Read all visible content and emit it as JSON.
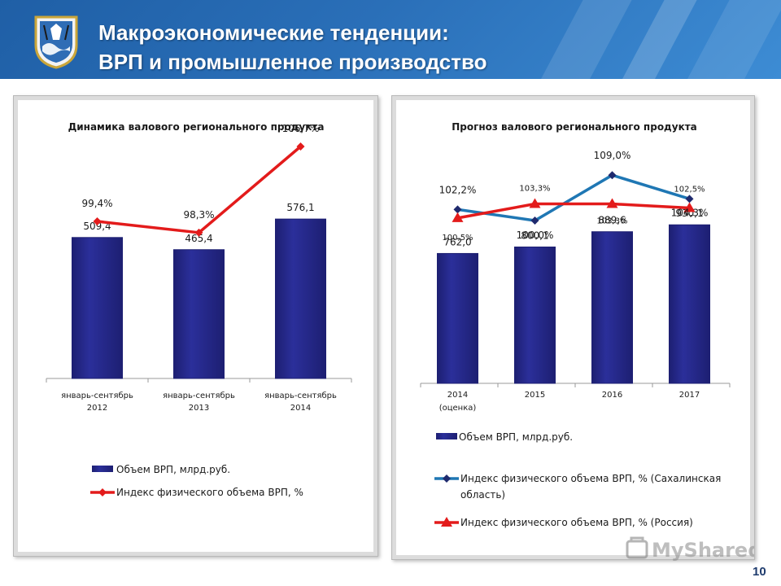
{
  "header": {
    "title_line1": "Макроэкономические тенденции:",
    "title_line2": "ВРП и промышленное производство"
  },
  "page_number": "10",
  "watermark": "MyShared",
  "colors": {
    "bar": "#2b2f9a",
    "bar_dark": "#1d1f72",
    "red_line": "#e31b1b",
    "blue_line": "#1f77b4",
    "blue_marker": "#1f2a6e"
  },
  "chart_data": [
    {
      "type": "bar",
      "title": "Динамика валового регионального продукта",
      "categories": [
        [
          "январь-сентябрь",
          "2012"
        ],
        [
          "январь-сентябрь",
          "2013"
        ],
        [
          "январь-сентябрь",
          "2014"
        ]
      ],
      "series": [
        {
          "name": "Объем ВРП, млрд.руб.",
          "kind": "bar",
          "values": [
            509.4,
            465.4,
            576.1
          ],
          "labels": [
            "509,4",
            "465,4",
            "576,1"
          ]
        },
        {
          "name": "Индекс физического объема ВРП, %",
          "kind": "line",
          "marker": "diamond",
          "values": [
            99.4,
            98.3,
            106.7
          ],
          "labels": [
            "99,4%",
            "98,3%",
            "106,7%"
          ]
        }
      ],
      "legend": "bottom"
    },
    {
      "type": "bar",
      "title": "Прогноз валового регионального продукта",
      "categories": [
        [
          "2014",
          "(оценка)"
        ],
        [
          "2015"
        ],
        [
          "2016"
        ],
        [
          "2017"
        ]
      ],
      "series": [
        {
          "name": "Объем ВРП, млрд.руб.",
          "kind": "bar",
          "values": [
            762.0,
            800.1,
            889.6,
            930.1
          ],
          "labels": [
            "762,0",
            "800,1",
            "889,6",
            "930,1"
          ]
        },
        {
          "name": "Индекс физического объема ВРП, % (Сахалинская область)",
          "legend_lines": [
            "Индекс физического объема ВРП, % (Сахалинская",
            "область)"
          ],
          "kind": "line",
          "marker": "diamond",
          "values": [
            102.2,
            100.0,
            109.0,
            104.3
          ],
          "labels": [
            "102,2%",
            "100,0%",
            "109,0%",
            "104,3%"
          ]
        },
        {
          "name": "Индекс физического объема ВРП, % (Россия)",
          "kind": "line",
          "marker": "triangle",
          "values": [
            100.5,
            103.3,
            103.3,
            102.5
          ],
          "labels": [
            "100,5%",
            "103,3%",
            "103,3%",
            "102,5%"
          ]
        }
      ],
      "legend": "bottom"
    }
  ]
}
